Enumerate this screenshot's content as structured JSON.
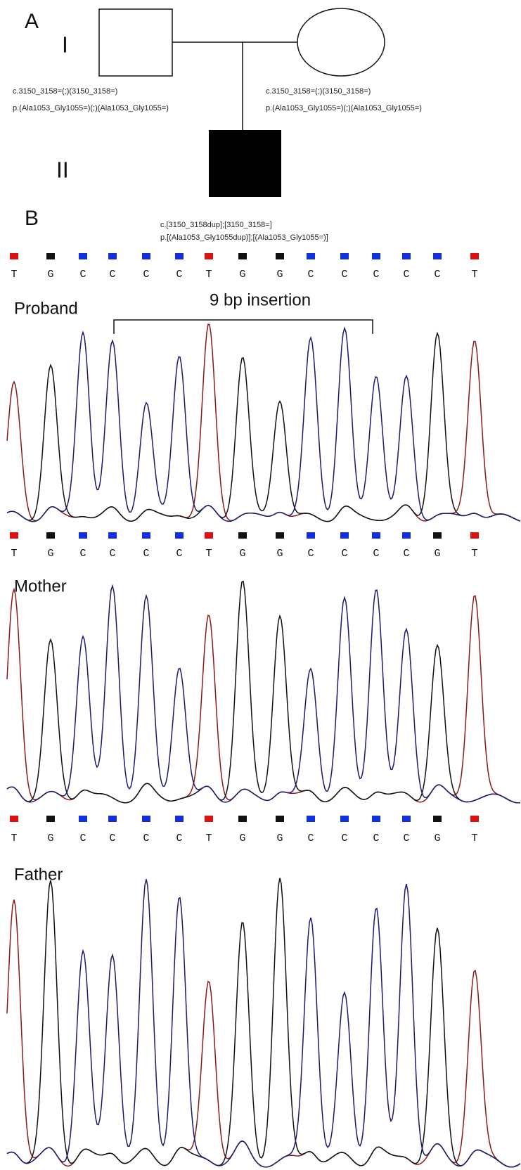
{
  "panel_a": {
    "label": "A",
    "generations": [
      "I",
      "II"
    ],
    "father_genotype": [
      "c.3150_3158=(;)(3150_3158=)",
      "p.(Ala1053_Gly1055=)(;)(Ala1053_Gly1055=)"
    ],
    "mother_genotype": [
      "c.3150_3158=(;)(3150_3158=)",
      "p.(Ala1053_Gly1055=)(;)(Ala1053_Gly1055=)"
    ],
    "proband_genotype": [
      "c.[3150_3158dup];[3150_3158=]",
      "p.[(Ala1053_Gly1055dup)];[(Ala1053_Gly1055=)]"
    ]
  },
  "panel_b": {
    "label": "B",
    "reference_sequence": [
      "T",
      "G",
      "C",
      "C",
      "C",
      "C",
      "T",
      "G",
      "G",
      "C",
      "C",
      "C",
      "C",
      "C",
      "T"
    ],
    "insertion_label": "9 bp insertion",
    "traces": [
      {
        "name": "Proband",
        "bases": [
          "T",
          "G",
          "C",
          "C",
          "C",
          "C",
          "T",
          "G",
          "G",
          "C",
          "C",
          "C",
          "C",
          "G",
          "T"
        ]
      },
      {
        "name": "Mother",
        "bases": [
          "T",
          "G",
          "C",
          "C",
          "C",
          "C",
          "T",
          "G",
          "G",
          "C",
          "C",
          "C",
          "C",
          "G",
          "T"
        ]
      },
      {
        "name": "Father"
      }
    ]
  }
}
